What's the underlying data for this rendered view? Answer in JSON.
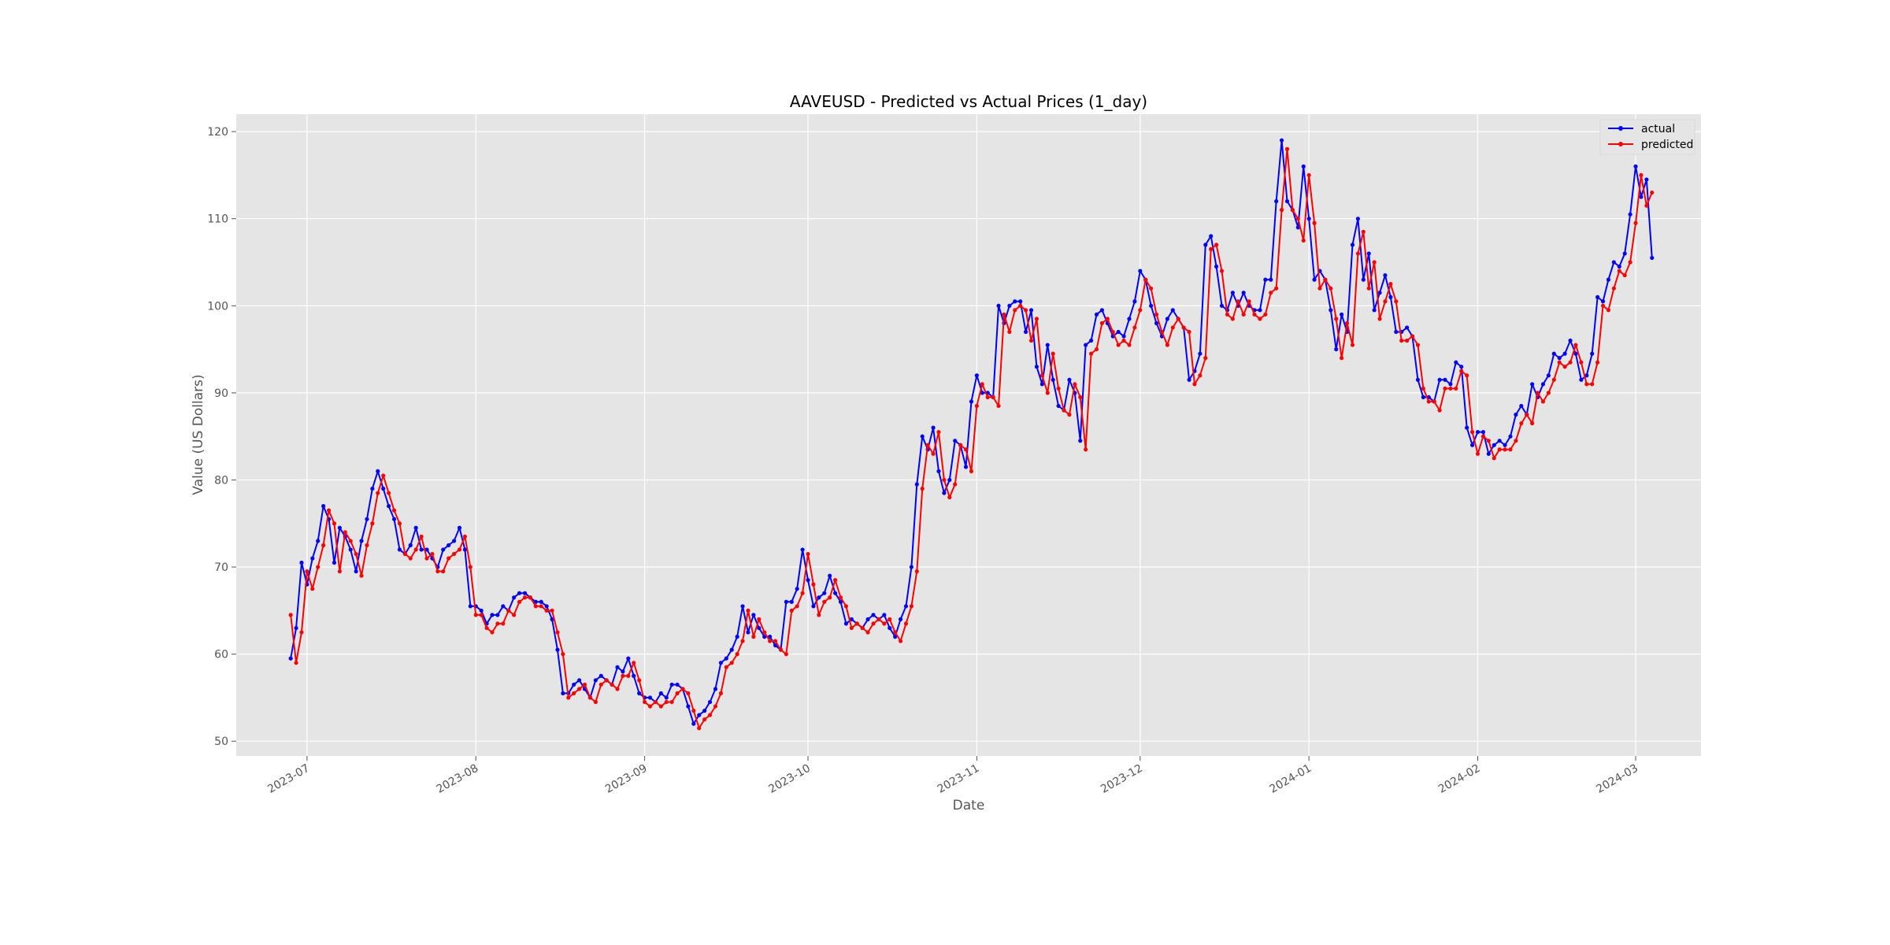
{
  "chart_data": {
    "type": "line",
    "title": "AAVEUSD - Predicted vs Actual Prices (1_day)",
    "xlabel": "Date",
    "ylabel": "Value (US Dollars)",
    "x_start": "2023-06-28",
    "xlim": [
      "2023-06-18",
      "2024-03-13"
    ],
    "ylim": [
      48.3,
      122.0
    ],
    "x_ticks": [
      "2023-07-01",
      "2023-08-01",
      "2023-09-01",
      "2023-10-01",
      "2023-11-01",
      "2023-12-01",
      "2024-01-01",
      "2024-02-01",
      "2024-03-01"
    ],
    "x_tick_labels": [
      "2023-07",
      "2023-08",
      "2023-09",
      "2023-10",
      "2023-11",
      "2023-12",
      "2024-01",
      "2024-02",
      "2024-03"
    ],
    "y_ticks": [
      50,
      60,
      70,
      80,
      90,
      100,
      110,
      120
    ],
    "grid": true,
    "legend_position": "top-right",
    "series": [
      {
        "name": "actual",
        "color": "#0000ff",
        "values": [
          59.5,
          63.0,
          70.5,
          68.0,
          71.0,
          73.0,
          77.0,
          75.5,
          70.5,
          74.5,
          73.5,
          72.0,
          69.5,
          73.0,
          75.5,
          79.0,
          81.0,
          79.0,
          77.0,
          75.5,
          72.0,
          71.5,
          72.5,
          74.5,
          72.0,
          72.0,
          71.0,
          70.0,
          72.0,
          72.5,
          73.0,
          74.5,
          72.0,
          65.5,
          65.5,
          65.0,
          63.5,
          64.5,
          64.5,
          65.5,
          65.0,
          66.5,
          67.0,
          67.0,
          66.5,
          66.0,
          66.0,
          65.5,
          64.0,
          60.5,
          55.5,
          55.5,
          56.5,
          57.0,
          56.0,
          55.0,
          57.0,
          57.5,
          57.0,
          56.5,
          58.5,
          58.0,
          59.5,
          57.5,
          55.5,
          55.0,
          55.0,
          54.5,
          55.5,
          55.0,
          56.5,
          56.5,
          56.0,
          54.0,
          52.0,
          53.0,
          53.5,
          54.5,
          56.0,
          59.0,
          59.5,
          60.5,
          62.0,
          65.5,
          62.5,
          64.5,
          63.0,
          62.0,
          62.0,
          61.0,
          60.5,
          66.0,
          66.0,
          67.5,
          72.0,
          68.5,
          65.5,
          66.5,
          67.0,
          69.0,
          67.0,
          66.0,
          63.5,
          64.0,
          63.5,
          63.0,
          64.0,
          64.5,
          64.0,
          64.5,
          63.0,
          62.0,
          64.0,
          65.5,
          70.0,
          79.5,
          85.0,
          83.5,
          86.0,
          81.0,
          78.5,
          80.0,
          84.5,
          84.0,
          81.5,
          89.0,
          92.0,
          90.0,
          90.0,
          89.5,
          100.0,
          98.0,
          100.0,
          100.5,
          100.5,
          97.0,
          99.5,
          93.0,
          91.0,
          95.5,
          91.5,
          88.5,
          88.0,
          91.5,
          90.0,
          84.5,
          95.5,
          96.0,
          99.0,
          99.5,
          98.0,
          96.5,
          97.0,
          96.5,
          98.5,
          100.5,
          104.0,
          103.0,
          100.0,
          98.0,
          96.5,
          98.5,
          99.5,
          98.5,
          97.5,
          91.5,
          92.5,
          94.5,
          107.0,
          108.0,
          104.5,
          100.0,
          99.5,
          101.5,
          100.0,
          101.5,
          100.0,
          99.5,
          99.5,
          103.0,
          103.0,
          112.0,
          119.0,
          112.0,
          111.0,
          109.0,
          116.0,
          110.0,
          103.0,
          104.0,
          103.0,
          99.5,
          95.0,
          99.0,
          97.0,
          107.0,
          110.0,
          103.0,
          106.0,
          99.5,
          101.5,
          103.5,
          101.0,
          97.0,
          97.0,
          97.5,
          96.5,
          91.5,
          89.5,
          89.5,
          89.0,
          91.5,
          91.5,
          91.0,
          93.5,
          93.0,
          86.0,
          84.0,
          85.5,
          85.5,
          83.0,
          84.0,
          84.5,
          84.0,
          85.0,
          87.5,
          88.5,
          87.5,
          91.0,
          89.5,
          91.0,
          92.0,
          94.5,
          94.0,
          94.5,
          96.0,
          94.5,
          91.5,
          92.0,
          94.5,
          101.0,
          100.5,
          103.0,
          105.0,
          104.5,
          106.0,
          110.5,
          116.0,
          112.5,
          114.5,
          105.5
        ]
      },
      {
        "name": "predicted",
        "color": "#ff0000",
        "values": [
          64.5,
          59.0,
          62.5,
          69.5,
          67.5,
          70.0,
          72.5,
          76.5,
          75.0,
          69.5,
          74.0,
          73.0,
          71.5,
          69.0,
          72.5,
          75.0,
          78.5,
          80.5,
          78.5,
          76.5,
          75.0,
          71.5,
          71.0,
          72.0,
          73.5,
          71.0,
          71.5,
          69.5,
          69.5,
          71.0,
          71.5,
          72.0,
          73.5,
          70.0,
          64.5,
          64.5,
          63.0,
          62.5,
          63.5,
          63.5,
          65.0,
          64.5,
          66.0,
          66.5,
          66.5,
          65.5,
          65.5,
          65.0,
          65.0,
          62.5,
          60.0,
          55.0,
          55.5,
          56.0,
          56.5,
          55.0,
          54.5,
          56.5,
          57.0,
          56.5,
          56.0,
          57.5,
          57.5,
          59.0,
          57.0,
          54.5,
          54.0,
          54.5,
          54.0,
          54.5,
          54.5,
          55.5,
          56.0,
          55.5,
          53.5,
          51.5,
          52.5,
          53.0,
          54.0,
          55.5,
          58.5,
          59.0,
          60.0,
          61.5,
          65.0,
          62.0,
          64.0,
          62.5,
          61.5,
          61.5,
          60.5,
          60.0,
          65.0,
          65.5,
          67.0,
          71.5,
          68.0,
          64.5,
          66.0,
          66.5,
          68.5,
          66.5,
          65.5,
          63.0,
          63.5,
          63.0,
          62.5,
          63.5,
          64.0,
          63.5,
          64.0,
          62.5,
          61.5,
          63.5,
          65.5,
          69.5,
          79.0,
          84.0,
          83.0,
          85.5,
          80.0,
          78.0,
          79.5,
          84.0,
          83.5,
          81.0,
          88.5,
          91.0,
          89.5,
          89.5,
          88.5,
          99.0,
          97.0,
          99.5,
          100.0,
          99.5,
          96.0,
          98.5,
          92.0,
          90.0,
          94.5,
          90.5,
          88.0,
          87.5,
          91.0,
          89.5,
          83.5,
          94.5,
          95.0,
          98.0,
          98.5,
          97.0,
          95.5,
          96.0,
          95.5,
          97.5,
          99.5,
          103.0,
          102.0,
          99.0,
          97.0,
          95.5,
          97.5,
          98.5,
          97.5,
          97.0,
          91.0,
          92.0,
          94.0,
          106.5,
          107.0,
          104.0,
          99.0,
          98.5,
          100.5,
          99.0,
          100.5,
          99.0,
          98.5,
          99.0,
          101.5,
          102.0,
          111.0,
          118.0,
          111.0,
          110.0,
          107.5,
          115.0,
          109.5,
          102.0,
          103.0,
          102.0,
          98.5,
          94.0,
          98.0,
          95.5,
          106.0,
          108.5,
          102.0,
          105.0,
          98.5,
          100.5,
          102.5,
          100.5,
          96.0,
          96.0,
          96.5,
          95.5,
          90.5,
          89.0,
          89.0,
          88.0,
          90.5,
          90.5,
          90.5,
          92.5,
          92.0,
          85.5,
          83.0,
          85.0,
          84.5,
          82.5,
          83.5,
          83.5,
          83.5,
          84.5,
          86.5,
          87.5,
          86.5,
          90.0,
          89.0,
          90.0,
          91.5,
          93.5,
          93.0,
          93.5,
          95.5,
          93.5,
          91.0,
          91.0,
          93.5,
          100.0,
          99.5,
          102.0,
          104.0,
          103.5,
          105.0,
          109.5,
          115.0,
          111.5,
          113.0
        ]
      }
    ]
  }
}
